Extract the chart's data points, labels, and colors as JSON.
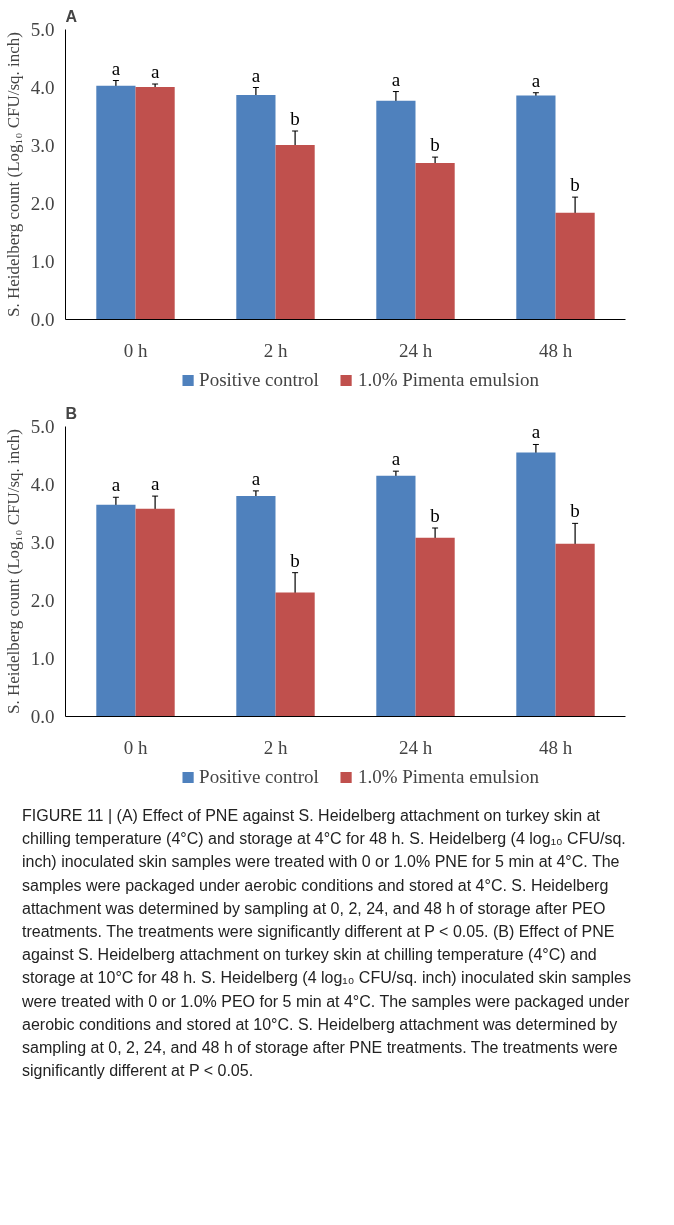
{
  "chart_data": [
    {
      "type": "bar",
      "title": "A",
      "ylabel": "S. Heidelberg count (Log₁₀ CFU/sq. inch)",
      "categories": [
        "0 h",
        "2 h",
        "24 h",
        "48 h"
      ],
      "series": [
        {
          "name": "Positive control",
          "color": "#4f81bd",
          "values": [
            4.03,
            3.87,
            3.77,
            3.86
          ],
          "errors": [
            0.09,
            0.13,
            0.16,
            0.05
          ]
        },
        {
          "name": "1.0% Pimenta emulsion",
          "color": "#c0504d",
          "values": [
            4.01,
            3.01,
            2.7,
            1.84
          ],
          "errors": [
            0.05,
            0.24,
            0.1,
            0.27
          ]
        }
      ],
      "ylim": [
        0,
        5
      ],
      "yticks": [
        {
          "value": 0,
          "label": "0.0"
        },
        {
          "value": 1,
          "label": "1.0"
        },
        {
          "value": 2,
          "label": "2.0"
        },
        {
          "value": 3,
          "label": "3.0"
        },
        {
          "value": 4,
          "label": "4.0"
        },
        {
          "value": 5,
          "label": "5.0"
        }
      ],
      "grid": false,
      "legend": "bottom",
      "annotations": [
        "a",
        "a",
        "a",
        "b",
        "a",
        "b",
        "a",
        "b"
      ]
    },
    {
      "type": "bar",
      "title": "B",
      "ylabel": "S. Heidelberg count (Log₁₀ CFU/sq. inch)",
      "categories": [
        "0 h",
        "2 h",
        "24 h",
        "48 h"
      ],
      "series": [
        {
          "name": "Positive control",
          "color": "#4f81bd",
          "values": [
            3.65,
            3.8,
            4.15,
            4.55
          ],
          "errors": [
            0.13,
            0.09,
            0.08,
            0.14
          ]
        },
        {
          "name": "1.0% Pimenta emulsion",
          "color": "#c0504d",
          "values": [
            3.58,
            2.14,
            3.08,
            2.98
          ],
          "errors": [
            0.22,
            0.34,
            0.17,
            0.35
          ]
        }
      ],
      "ylim": [
        0,
        5
      ],
      "yticks": [
        {
          "value": 0,
          "label": "0.0"
        },
        {
          "value": 1,
          "label": "1.0"
        },
        {
          "value": 2,
          "label": "2.0"
        },
        {
          "value": 3,
          "label": "3.0"
        },
        {
          "value": 4,
          "label": "4.0"
        },
        {
          "value": 5,
          "label": "5.0"
        }
      ],
      "grid": false,
      "legend": "bottom",
      "annotations": [
        "a",
        "a",
        "a",
        "b",
        "a",
        "b",
        "a",
        "b",
        "FIGURE 11 | (A) Effect of PNE against S. Heidelberg attachment on turkey skin at chilling temperature (4°C) and storage at 4°C for 48 h. S. Heidelberg (4 log₁₀ CFU/sq. inch) inoculated skin samples were treated with 0 or 1.0% PNE for 5 min at 4°C. The samples were packaged under aerobic conditions and stored at 4°C. S. Heidelberg attachment was determined by sampling at 0, 2, 24, and 48 h of storage after PEO treatments. The treatments were significantly different at P < 0.05. (B) Effect of PNE against S. Heidelberg attachment on turkey skin at chilling temperature (4°C) and storage at 10°C for 48 h. S. Heidelberg (4 log₁₀ CFU/sq. inch) inoculated skin samples were treated with 0 or 1.0% PEO for 5 min at 4°C. The samples were packaged under aerobic conditions and stored at 10°C. S. Heidelberg attachment was determined by sampling at 0, 2, 24, and 48 h of storage after PNE treatments. The treatments were significantly different at P < 0.05."
      ]
    }
  ]
}
